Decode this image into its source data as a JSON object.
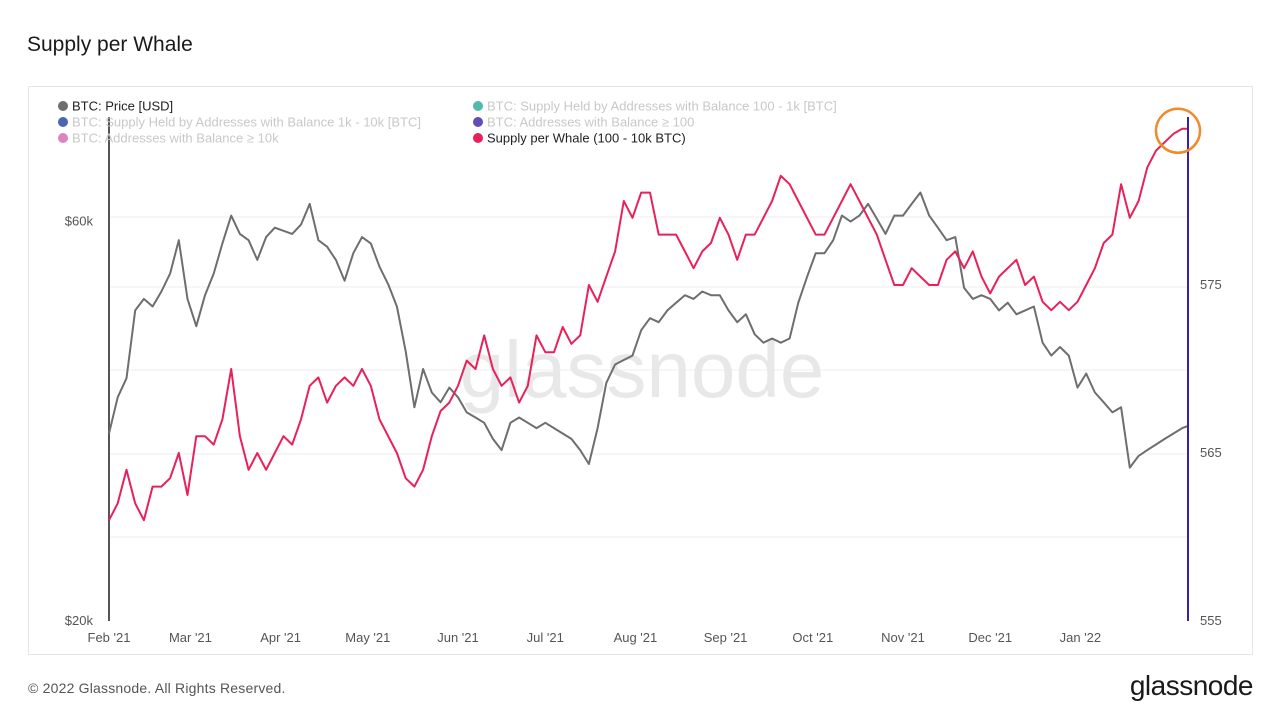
{
  "page": {
    "title": "Supply per Whale",
    "copyright": "© 2022 Glassnode. All Rights Reserved.",
    "logo_text": "glassnode",
    "watermark": "glassnode"
  },
  "colors": {
    "price": "#6e6e6e",
    "supply_per_whale": "#e8215a",
    "axis_line_right": "#3a1fa8",
    "highlight_circle": "#f08a2c",
    "legend_teal": "#27a79b",
    "legend_blue": "#1b3fa0",
    "legend_purple": "#3a1fa8",
    "legend_pink": "#d564b0"
  },
  "chart_data": {
    "type": "line",
    "title": "Supply per Whale",
    "x_axis": {
      "tick_labels": [
        "Feb '21",
        "Mar '21",
        "Apr '21",
        "May '21",
        "Jun '21",
        "Jul '21",
        "Aug '21",
        "Sep '21",
        "Oct '21",
        "Nov '21",
        "Dec '21",
        "Jan '22"
      ],
      "tick_days": [
        0,
        28,
        59,
        89,
        120,
        150,
        181,
        212,
        242,
        273,
        303,
        334
      ],
      "range_days": [
        0,
        371
      ]
    },
    "left_axis": {
      "scale": "log",
      "tick_labels": [
        "$60k",
        "$20k"
      ],
      "tick_values": [
        60000,
        20000
      ],
      "range": [
        20000,
        80000
      ]
    },
    "right_axis": {
      "scale": "linear",
      "tick_labels": [
        "575",
        "565",
        "555"
      ],
      "tick_values": [
        575,
        565,
        555
      ],
      "range": [
        555,
        585
      ]
    },
    "legend": [
      {
        "name": "BTC: Price [USD]",
        "color": "#6e6e6e",
        "active": true
      },
      {
        "name": "BTC: Supply Held by Addresses with Balance 100 - 1k [BTC]",
        "color": "#27a79b",
        "active": false
      },
      {
        "name": "BTC: Supply Held by Addresses with Balance 1k - 10k [BTC]",
        "color": "#1b3fa0",
        "active": false
      },
      {
        "name": "BTC: Addresses with Balance ≥ 100",
        "color": "#3a1fa8",
        "active": false
      },
      {
        "name": "BTC: Addresses with Balance ≥ 10k",
        "color": "#d564b0",
        "active": false
      },
      {
        "name": "Supply per Whale (100 - 10k BTC)",
        "color": "#e8215a",
        "active": true
      }
    ],
    "series": [
      {
        "name": "BTC: Price [USD]",
        "axis": "left",
        "points": [
          [
            0,
            33500
          ],
          [
            3,
            37000
          ],
          [
            6,
            39000
          ],
          [
            9,
            47000
          ],
          [
            12,
            48500
          ],
          [
            15,
            47500
          ],
          [
            18,
            49500
          ],
          [
            21,
            52000
          ],
          [
            24,
            57000
          ],
          [
            27,
            48500
          ],
          [
            30,
            45000
          ],
          [
            33,
            49000
          ],
          [
            36,
            52000
          ],
          [
            39,
            56500
          ],
          [
            42,
            61000
          ],
          [
            45,
            58000
          ],
          [
            48,
            57000
          ],
          [
            51,
            54000
          ],
          [
            54,
            57500
          ],
          [
            57,
            59000
          ],
          [
            60,
            58500
          ],
          [
            63,
            58000
          ],
          [
            66,
            59500
          ],
          [
            69,
            63000
          ],
          [
            72,
            57000
          ],
          [
            75,
            56000
          ],
          [
            78,
            54000
          ],
          [
            81,
            51000
          ],
          [
            84,
            55000
          ],
          [
            87,
            57500
          ],
          [
            90,
            56500
          ],
          [
            93,
            53000
          ],
          [
            96,
            50500
          ],
          [
            99,
            47500
          ],
          [
            102,
            42000
          ],
          [
            105,
            36000
          ],
          [
            108,
            40000
          ],
          [
            111,
            37500
          ],
          [
            114,
            36500
          ],
          [
            117,
            38000
          ],
          [
            120,
            37000
          ],
          [
            123,
            35500
          ],
          [
            126,
            35000
          ],
          [
            129,
            34500
          ],
          [
            132,
            33000
          ],
          [
            135,
            32000
          ],
          [
            138,
            34500
          ],
          [
            141,
            35000
          ],
          [
            144,
            34500
          ],
          [
            147,
            34000
          ],
          [
            150,
            34500
          ],
          [
            153,
            34000
          ],
          [
            156,
            33500
          ],
          [
            159,
            33000
          ],
          [
            162,
            32000
          ],
          [
            165,
            30800
          ],
          [
            168,
            34000
          ],
          [
            171,
            38500
          ],
          [
            174,
            40500
          ],
          [
            177,
            41000
          ],
          [
            180,
            41500
          ],
          [
            183,
            44500
          ],
          [
            186,
            46000
          ],
          [
            189,
            45500
          ],
          [
            192,
            47000
          ],
          [
            195,
            48000
          ],
          [
            198,
            49000
          ],
          [
            201,
            48500
          ],
          [
            204,
            49500
          ],
          [
            207,
            49000
          ],
          [
            210,
            49000
          ],
          [
            213,
            47000
          ],
          [
            216,
            45500
          ],
          [
            219,
            46500
          ],
          [
            222,
            44000
          ],
          [
            225,
            43000
          ],
          [
            228,
            43500
          ],
          [
            231,
            43000
          ],
          [
            234,
            43500
          ],
          [
            237,
            48000
          ],
          [
            240,
            51500
          ],
          [
            243,
            55000
          ],
          [
            246,
            55000
          ],
          [
            249,
            57000
          ],
          [
            252,
            61000
          ],
          [
            255,
            60000
          ],
          [
            258,
            61000
          ],
          [
            261,
            63000
          ],
          [
            264,
            60500
          ],
          [
            267,
            58000
          ],
          [
            270,
            61000
          ],
          [
            273,
            61000
          ],
          [
            276,
            63000
          ],
          [
            279,
            65000
          ],
          [
            282,
            61000
          ],
          [
            285,
            59000
          ],
          [
            288,
            57000
          ],
          [
            291,
            57500
          ],
          [
            294,
            50000
          ],
          [
            297,
            48500
          ],
          [
            300,
            49000
          ],
          [
            303,
            48500
          ],
          [
            306,
            47000
          ],
          [
            309,
            48000
          ],
          [
            312,
            46500
          ],
          [
            315,
            47000
          ],
          [
            318,
            47500
          ],
          [
            321,
            43000
          ],
          [
            324,
            41500
          ],
          [
            327,
            42500
          ],
          [
            330,
            41500
          ],
          [
            333,
            38000
          ],
          [
            336,
            39500
          ],
          [
            339,
            37500
          ],
          [
            342,
            36500
          ],
          [
            345,
            35500
          ],
          [
            348,
            36000
          ],
          [
            351,
            30500
          ],
          [
            354,
            31500
          ],
          [
            357,
            32000
          ],
          [
            360,
            32500
          ],
          [
            363,
            33000
          ],
          [
            366,
            33500
          ],
          [
            369,
            34000
          ],
          [
            371,
            34200
          ]
        ]
      },
      {
        "name": "Supply per Whale (100 - 10k BTC)",
        "axis": "right",
        "points": [
          [
            0,
            561
          ],
          [
            3,
            562
          ],
          [
            6,
            564
          ],
          [
            9,
            562
          ],
          [
            12,
            561
          ],
          [
            15,
            563
          ],
          [
            18,
            563
          ],
          [
            21,
            563.5
          ],
          [
            24,
            565
          ],
          [
            27,
            562.5
          ],
          [
            30,
            566
          ],
          [
            33,
            566
          ],
          [
            36,
            565.5
          ],
          [
            39,
            567
          ],
          [
            42,
            570
          ],
          [
            45,
            566
          ],
          [
            48,
            564
          ],
          [
            51,
            565
          ],
          [
            54,
            564
          ],
          [
            57,
            565
          ],
          [
            60,
            566
          ],
          [
            63,
            565.5
          ],
          [
            66,
            567
          ],
          [
            69,
            569
          ],
          [
            72,
            569.5
          ],
          [
            75,
            568
          ],
          [
            78,
            569
          ],
          [
            81,
            569.5
          ],
          [
            84,
            569
          ],
          [
            87,
            570
          ],
          [
            90,
            569
          ],
          [
            93,
            567
          ],
          [
            96,
            566
          ],
          [
            99,
            565
          ],
          [
            102,
            563.5
          ],
          [
            105,
            563
          ],
          [
            108,
            564
          ],
          [
            111,
            566
          ],
          [
            114,
            567.5
          ],
          [
            117,
            568
          ],
          [
            120,
            569
          ],
          [
            123,
            570.5
          ],
          [
            126,
            570
          ],
          [
            129,
            572
          ],
          [
            132,
            570
          ],
          [
            135,
            569
          ],
          [
            138,
            569.5
          ],
          [
            141,
            568
          ],
          [
            144,
            569
          ],
          [
            147,
            572
          ],
          [
            150,
            571
          ],
          [
            153,
            571
          ],
          [
            156,
            572.5
          ],
          [
            159,
            571.5
          ],
          [
            162,
            572
          ],
          [
            165,
            575
          ],
          [
            168,
            574
          ],
          [
            171,
            575.5
          ],
          [
            174,
            577
          ],
          [
            177,
            580
          ],
          [
            180,
            579
          ],
          [
            183,
            580.5
          ],
          [
            186,
            580.5
          ],
          [
            189,
            578
          ],
          [
            192,
            578
          ],
          [
            195,
            578
          ],
          [
            198,
            577
          ],
          [
            201,
            576
          ],
          [
            204,
            577
          ],
          [
            207,
            577.5
          ],
          [
            210,
            579
          ],
          [
            213,
            578
          ],
          [
            216,
            576.5
          ],
          [
            219,
            578
          ],
          [
            222,
            578
          ],
          [
            225,
            579
          ],
          [
            228,
            580
          ],
          [
            231,
            581.5
          ],
          [
            234,
            581
          ],
          [
            237,
            580
          ],
          [
            240,
            579
          ],
          [
            243,
            578
          ],
          [
            246,
            578
          ],
          [
            249,
            579
          ],
          [
            252,
            580
          ],
          [
            255,
            581
          ],
          [
            258,
            580
          ],
          [
            261,
            579
          ],
          [
            264,
            578
          ],
          [
            267,
            576.5
          ],
          [
            270,
            575
          ],
          [
            273,
            575
          ],
          [
            276,
            576
          ],
          [
            279,
            575.5
          ],
          [
            282,
            575
          ],
          [
            285,
            575
          ],
          [
            288,
            576.5
          ],
          [
            291,
            577
          ],
          [
            294,
            576
          ],
          [
            297,
            577
          ],
          [
            300,
            575.5
          ],
          [
            303,
            574.5
          ],
          [
            306,
            575.5
          ],
          [
            309,
            576
          ],
          [
            312,
            576.5
          ],
          [
            315,
            575
          ],
          [
            318,
            575.5
          ],
          [
            321,
            574
          ],
          [
            324,
            573.5
          ],
          [
            327,
            574
          ],
          [
            330,
            573.5
          ],
          [
            333,
            574
          ],
          [
            336,
            575
          ],
          [
            339,
            576
          ],
          [
            342,
            577.5
          ],
          [
            345,
            578
          ],
          [
            348,
            581
          ],
          [
            351,
            579
          ],
          [
            354,
            580
          ],
          [
            357,
            582
          ],
          [
            360,
            583
          ],
          [
            363,
            583.5
          ],
          [
            366,
            584
          ],
          [
            369,
            584.3
          ],
          [
            371,
            584.3
          ]
        ]
      }
    ]
  }
}
